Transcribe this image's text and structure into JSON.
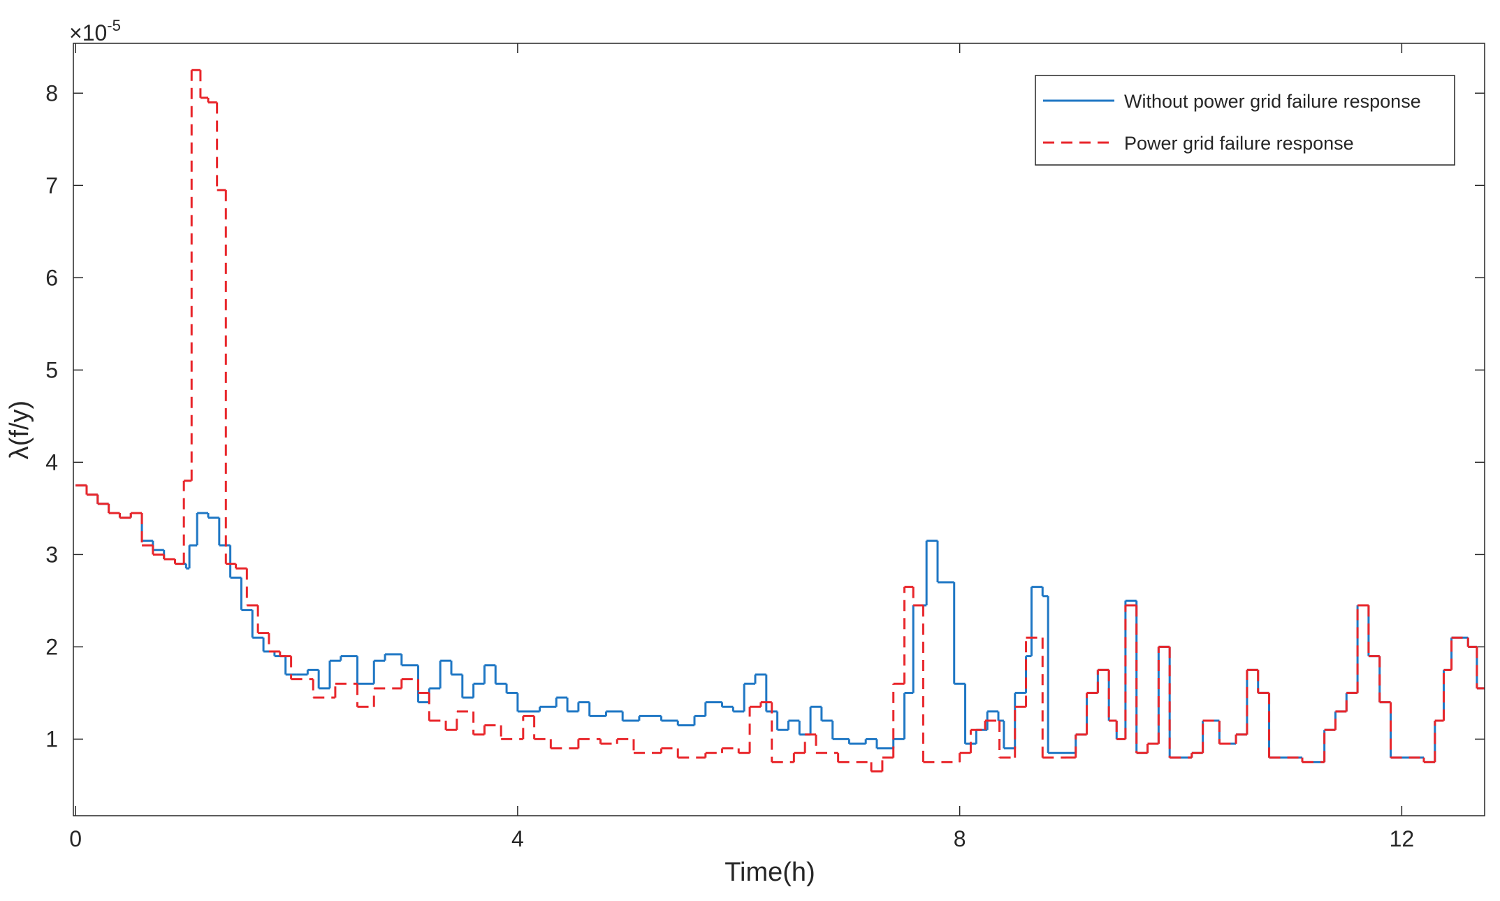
{
  "chart_data": {
    "type": "line",
    "step": "post",
    "xlabel": "Time(h)",
    "ylabel": "λ(f/y)",
    "y_multiplier": {
      "base": "×10",
      "exponent": "-5"
    },
    "xlim": [
      -0.02,
      12.75
    ],
    "ylim": [
      0.17,
      8.54
    ],
    "xticks": [
      0,
      4,
      8,
      12
    ],
    "yticks": [
      1,
      2,
      3,
      4,
      5,
      6,
      7,
      8
    ],
    "grid": false,
    "legend": "upper right",
    "series": [
      {
        "name": "Without power grid failure response",
        "color": "#1f77c4",
        "dash": "solid",
        "x": [
          0,
          0.1,
          0.2,
          0.3,
          0.4,
          0.5,
          0.6,
          0.7,
          0.8,
          0.9,
          1.0,
          1.03,
          1.1,
          1.2,
          1.3,
          1.4,
          1.5,
          1.6,
          1.7,
          1.8,
          1.9,
          2.0,
          2.1,
          2.2,
          2.3,
          2.4,
          2.55,
          2.7,
          2.8,
          2.95,
          3.1,
          3.2,
          3.3,
          3.4,
          3.5,
          3.6,
          3.7,
          3.8,
          3.9,
          4.0,
          4.2,
          4.35,
          4.45,
          4.55,
          4.65,
          4.8,
          4.95,
          5.1,
          5.3,
          5.45,
          5.6,
          5.7,
          5.85,
          5.95,
          6.05,
          6.15,
          6.25,
          6.35,
          6.45,
          6.55,
          6.65,
          6.75,
          6.85,
          7.0,
          7.15,
          7.25,
          7.4,
          7.5,
          7.58,
          7.7,
          7.8,
          7.95,
          8.05,
          8.15,
          8.25,
          8.35,
          8.4,
          8.5,
          8.6,
          8.65,
          8.75,
          8.8,
          8.96,
          9.05,
          9.15,
          9.25,
          9.35,
          9.42,
          9.5,
          9.6,
          9.7,
          9.8,
          9.9,
          10.1,
          10.2,
          10.35,
          10.5,
          10.6,
          10.7,
          10.8,
          11.1,
          11.3,
          11.4,
          11.5,
          11.6,
          11.7,
          11.8,
          11.9,
          12.2,
          12.3,
          12.38,
          12.45,
          12.6,
          12.68
        ],
        "values": [
          3.75,
          3.65,
          3.55,
          3.45,
          3.4,
          3.45,
          3.15,
          3.05,
          2.95,
          2.9,
          2.85,
          3.1,
          3.45,
          3.4,
          3.1,
          2.75,
          2.4,
          2.1,
          1.95,
          1.9,
          1.7,
          1.7,
          1.75,
          1.55,
          1.85,
          1.9,
          1.6,
          1.85,
          1.92,
          1.8,
          1.4,
          1.55,
          1.85,
          1.7,
          1.45,
          1.6,
          1.8,
          1.6,
          1.5,
          1.3,
          1.35,
          1.45,
          1.3,
          1.4,
          1.25,
          1.3,
          1.2,
          1.25,
          1.2,
          1.15,
          1.25,
          1.4,
          1.35,
          1.3,
          1.6,
          1.7,
          1.3,
          1.1,
          1.2,
          1.05,
          1.35,
          1.2,
          1.0,
          0.95,
          1.0,
          0.9,
          1.0,
          1.5,
          2.45,
          3.15,
          2.7,
          1.6,
          0.95,
          1.1,
          1.3,
          1.2,
          0.9,
          1.5,
          1.9,
          2.65,
          2.55,
          0.85,
          0.85,
          1.05,
          1.5,
          1.75,
          1.2,
          1.0,
          2.5,
          0.85,
          0.95,
          2.0,
          0.8,
          0.85,
          1.2,
          0.95,
          1.05,
          1.75,
          1.5,
          0.8,
          0.75,
          1.1,
          1.3,
          1.5,
          2.45,
          1.9,
          1.4,
          0.8,
          0.75,
          1.2,
          1.75,
          2.1,
          2.0,
          1.55
        ]
      },
      {
        "name": "Power grid failure response",
        "color": "#e8262b",
        "dash": "dashed",
        "x": [
          0,
          0.1,
          0.2,
          0.3,
          0.4,
          0.5,
          0.6,
          0.7,
          0.8,
          0.9,
          0.98,
          1.05,
          1.13,
          1.2,
          1.28,
          1.36,
          1.45,
          1.55,
          1.65,
          1.75,
          1.85,
          1.95,
          2.15,
          2.35,
          2.55,
          2.7,
          2.95,
          3.1,
          3.2,
          3.35,
          3.45,
          3.6,
          3.7,
          3.85,
          4.05,
          4.15,
          4.3,
          4.55,
          4.75,
          4.9,
          5.05,
          5.3,
          5.45,
          5.7,
          5.85,
          6.0,
          6.1,
          6.2,
          6.3,
          6.5,
          6.6,
          6.7,
          6.9,
          7.2,
          7.3,
          7.4,
          7.5,
          7.58,
          7.67,
          8.0,
          8.1,
          8.23,
          8.36,
          8.5,
          8.6,
          8.75,
          8.96,
          9.05,
          9.15,
          9.25,
          9.35,
          9.42,
          9.5,
          9.6,
          9.7,
          9.8,
          9.9,
          10.1,
          10.2,
          10.35,
          10.5,
          10.6,
          10.7,
          10.8,
          11.1,
          11.3,
          11.4,
          11.5,
          11.6,
          11.7,
          11.8,
          11.9,
          12.2,
          12.3,
          12.38,
          12.45,
          12.6,
          12.68
        ],
        "values": [
          3.75,
          3.65,
          3.55,
          3.45,
          3.4,
          3.45,
          3.1,
          3.0,
          2.95,
          2.9,
          3.8,
          8.25,
          7.95,
          7.9,
          6.95,
          2.9,
          2.85,
          2.45,
          2.15,
          1.95,
          1.9,
          1.65,
          1.45,
          1.6,
          1.35,
          1.55,
          1.65,
          1.5,
          1.2,
          1.1,
          1.3,
          1.05,
          1.15,
          1.0,
          1.25,
          1.0,
          0.9,
          1.0,
          0.95,
          1.0,
          0.85,
          0.9,
          0.8,
          0.85,
          0.9,
          0.85,
          1.35,
          1.4,
          0.75,
          0.85,
          1.05,
          0.85,
          0.75,
          0.65,
          0.8,
          1.6,
          2.65,
          2.45,
          0.75,
          0.85,
          1.1,
          1.2,
          0.8,
          1.35,
          2.1,
          0.8,
          0.8,
          1.05,
          1.5,
          1.75,
          1.2,
          1.0,
          2.45,
          0.85,
          0.95,
          2.0,
          0.8,
          0.85,
          1.2,
          0.95,
          1.05,
          1.75,
          1.5,
          0.8,
          0.75,
          1.1,
          1.3,
          1.5,
          2.45,
          1.9,
          1.4,
          0.8,
          0.75,
          1.2,
          1.75,
          2.1,
          2.0,
          1.55
        ]
      }
    ]
  }
}
